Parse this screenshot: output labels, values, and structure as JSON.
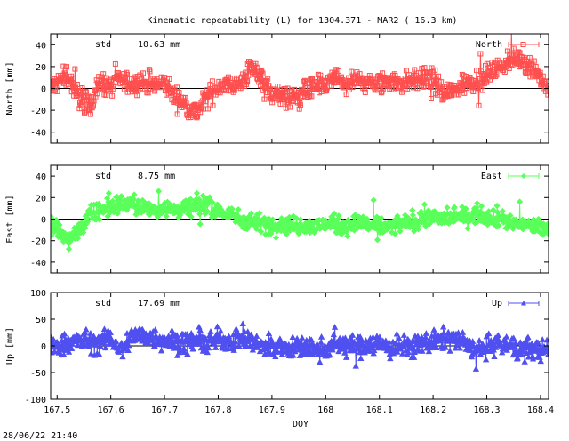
{
  "title": "Kinematic repeatability (L) for 1304.371 - MAR2  ( 16.3 km)",
  "timestamp": "28/06/22 21:40",
  "chart_data": [
    {
      "type": "scatter",
      "series_name": "North",
      "ylabel": "North [mm]",
      "std_label": "std",
      "std_value": "10.63 mm",
      "ylim": [
        -50,
        50
      ],
      "yticks": [
        -40,
        -20,
        0,
        20,
        40
      ],
      "color": "#ff4f4f",
      "marker": "square",
      "profile": [
        [
          167.48,
          -5
        ],
        [
          167.5,
          5
        ],
        [
          167.52,
          12
        ],
        [
          167.54,
          -8
        ],
        [
          167.56,
          -15
        ],
        [
          167.58,
          5
        ],
        [
          167.6,
          2
        ],
        [
          167.62,
          8
        ],
        [
          167.64,
          3
        ],
        [
          167.66,
          6
        ],
        [
          167.68,
          2
        ],
        [
          167.7,
          5
        ],
        [
          167.72,
          -8
        ],
        [
          167.74,
          -15
        ],
        [
          167.76,
          -22
        ],
        [
          167.78,
          -8
        ],
        [
          167.8,
          2
        ],
        [
          167.82,
          5
        ],
        [
          167.84,
          3
        ],
        [
          167.86,
          18
        ],
        [
          167.88,
          12
        ],
        [
          167.9,
          -5
        ],
        [
          167.92,
          -8
        ],
        [
          167.94,
          -10
        ],
        [
          167.96,
          -2
        ],
        [
          167.98,
          0
        ],
        [
          168.0,
          3
        ],
        [
          168.02,
          10
        ],
        [
          168.04,
          2
        ],
        [
          168.06,
          8
        ],
        [
          168.08,
          5
        ],
        [
          168.1,
          3
        ],
        [
          168.12,
          8
        ],
        [
          168.14,
          5
        ],
        [
          168.16,
          7
        ],
        [
          168.18,
          10
        ],
        [
          168.2,
          8
        ],
        [
          168.22,
          -5
        ],
        [
          168.24,
          -2
        ],
        [
          168.26,
          5
        ],
        [
          168.28,
          8
        ],
        [
          168.3,
          12
        ],
        [
          168.32,
          18
        ],
        [
          168.34,
          25
        ],
        [
          168.36,
          28
        ],
        [
          168.38,
          22
        ],
        [
          168.4,
          10
        ],
        [
          168.42,
          -5
        ]
      ],
      "noise": 7
    },
    {
      "type": "scatter",
      "series_name": "East",
      "ylabel": "East [mm]",
      "std_label": "std",
      "std_value": "8.75 mm",
      "ylim": [
        -50,
        50
      ],
      "yticks": [
        -40,
        -20,
        0,
        20,
        40
      ],
      "color": "#5aff5a",
      "marker": "diamond",
      "profile": [
        [
          167.48,
          -5
        ],
        [
          167.5,
          -10
        ],
        [
          167.52,
          -20
        ],
        [
          167.54,
          -12
        ],
        [
          167.56,
          2
        ],
        [
          167.58,
          8
        ],
        [
          167.6,
          12
        ],
        [
          167.62,
          15
        ],
        [
          167.64,
          14
        ],
        [
          167.66,
          10
        ],
        [
          167.68,
          8
        ],
        [
          167.7,
          12
        ],
        [
          167.72,
          8
        ],
        [
          167.74,
          10
        ],
        [
          167.76,
          12
        ],
        [
          167.78,
          14
        ],
        [
          167.8,
          8
        ],
        [
          167.82,
          4
        ],
        [
          167.84,
          0
        ],
        [
          167.86,
          -2
        ],
        [
          167.88,
          -4
        ],
        [
          167.9,
          -5
        ],
        [
          167.92,
          -4
        ],
        [
          167.94,
          -6
        ],
        [
          167.96,
          -5
        ],
        [
          167.98,
          -8
        ],
        [
          168.0,
          -4
        ],
        [
          168.02,
          -5
        ],
        [
          168.04,
          -6
        ],
        [
          168.06,
          -4
        ],
        [
          168.08,
          -5
        ],
        [
          168.1,
          -6
        ],
        [
          168.12,
          -8
        ],
        [
          168.14,
          -4
        ],
        [
          168.16,
          -3
        ],
        [
          168.18,
          1
        ],
        [
          168.2,
          2
        ],
        [
          168.22,
          0
        ],
        [
          168.24,
          3
        ],
        [
          168.26,
          2
        ],
        [
          168.28,
          5
        ],
        [
          168.3,
          3
        ],
        [
          168.32,
          2
        ],
        [
          168.34,
          -2
        ],
        [
          168.36,
          -4
        ],
        [
          168.38,
          -6
        ],
        [
          168.4,
          -8
        ],
        [
          168.42,
          -10
        ]
      ],
      "noise": 6
    },
    {
      "type": "scatter",
      "series_name": "Up",
      "ylabel": "Up [mm]",
      "std_label": "std",
      "std_value": "17.69 mm",
      "ylim": [
        -100,
        100
      ],
      "yticks": [
        -100,
        -50,
        0,
        50,
        100
      ],
      "color": "#5050f0",
      "marker": "triangle",
      "profile": [
        [
          167.48,
          -10
        ],
        [
          167.5,
          0
        ],
        [
          167.52,
          5
        ],
        [
          167.54,
          10
        ],
        [
          167.56,
          8
        ],
        [
          167.58,
          5
        ],
        [
          167.6,
          15
        ],
        [
          167.62,
          -10
        ],
        [
          167.64,
          20
        ],
        [
          167.66,
          18
        ],
        [
          167.68,
          15
        ],
        [
          167.7,
          12
        ],
        [
          167.72,
          8
        ],
        [
          167.74,
          5
        ],
        [
          167.76,
          10
        ],
        [
          167.78,
          5
        ],
        [
          167.8,
          12
        ],
        [
          167.82,
          10
        ],
        [
          167.84,
          15
        ],
        [
          167.86,
          10
        ],
        [
          167.88,
          0
        ],
        [
          167.9,
          -2
        ],
        [
          167.92,
          0
        ],
        [
          167.94,
          -5
        ],
        [
          167.96,
          -2
        ],
        [
          167.98,
          -8
        ],
        [
          168.0,
          -5
        ],
        [
          168.02,
          5
        ],
        [
          168.04,
          0
        ],
        [
          168.06,
          -3
        ],
        [
          168.08,
          5
        ],
        [
          168.1,
          3
        ],
        [
          168.12,
          -5
        ],
        [
          168.14,
          0
        ],
        [
          168.16,
          -2
        ],
        [
          168.18,
          5
        ],
        [
          168.2,
          8
        ],
        [
          168.22,
          10
        ],
        [
          168.24,
          12
        ],
        [
          168.26,
          5
        ],
        [
          168.28,
          -8
        ],
        [
          168.3,
          -5
        ],
        [
          168.32,
          5
        ],
        [
          168.34,
          0
        ],
        [
          168.36,
          -8
        ],
        [
          168.38,
          -5
        ],
        [
          168.4,
          -10
        ],
        [
          168.42,
          -5
        ]
      ],
      "noise": 14
    }
  ],
  "x_axis": {
    "xlabel": "DOY",
    "xlim": [
      167.488,
      168.415
    ],
    "xticks": [
      167.5,
      167.6,
      167.7,
      167.8,
      167.9,
      168,
      168.1,
      168.2,
      168.3,
      168.4
    ],
    "xtick_labels": [
      "167.5",
      "167.6",
      "167.7",
      "167.8",
      "167.9",
      "168",
      "168.1",
      "168.2",
      "168.3",
      "168.4"
    ]
  }
}
